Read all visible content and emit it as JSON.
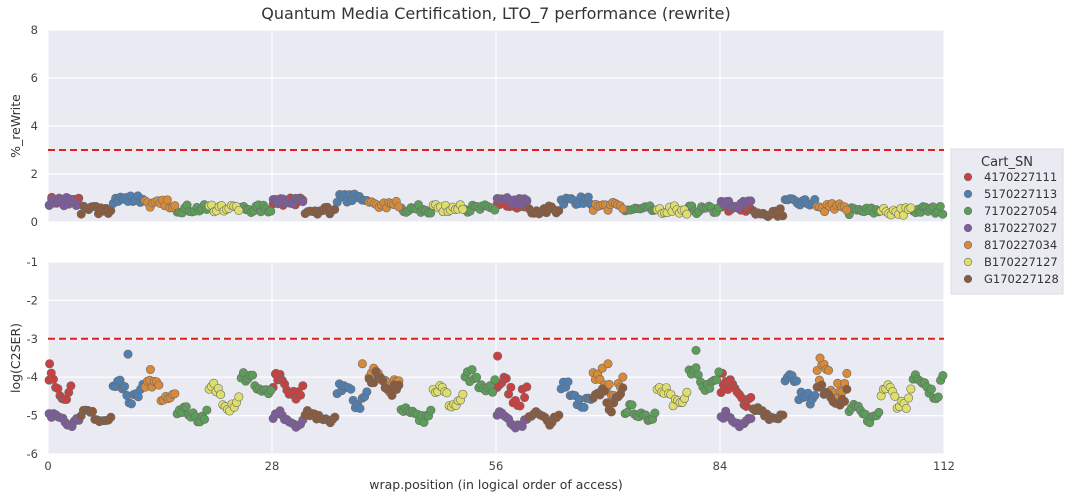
{
  "chart_data": {
    "type": "scatter",
    "title": "Quantum Media Certification, LTO_7 performance (rewrite)",
    "xlabel": "wrap.position (in logical order of access)",
    "xlim": [
      0,
      112
    ],
    "xticks": [
      0,
      28,
      56,
      84,
      112
    ],
    "grid": true,
    "legend": {
      "title": "Cart_SN",
      "placement": "right",
      "entries": [
        "4170227111",
        "5170227113",
        "7170227054",
        "8170227027",
        "8170227034",
        "B170227127",
        "G170227128"
      ]
    },
    "panels": [
      {
        "name": "top",
        "ylabel": "%_reWrite",
        "ylim": [
          0,
          8
        ],
        "yticks": [
          0,
          2,
          4,
          6,
          8
        ],
        "threshold": 3
      },
      {
        "name": "bottom",
        "ylabel": "log(C2SER)",
        "ylim": [
          -6,
          -1
        ],
        "yticks": [
          -6,
          -5,
          -4,
          -3,
          -2,
          -1
        ],
        "threshold": -3
      }
    ],
    "series": [
      {
        "name": "4170227111",
        "color": "#c8403f",
        "top_segments": [
          [
            0,
            4,
            0.88
          ],
          [
            28,
            32,
            0.85
          ],
          [
            56,
            60,
            0.7
          ],
          [
            84,
            88,
            0.6
          ]
        ],
        "bottom_segments": [
          [
            0,
            3,
            -4.3,
            0.45
          ],
          [
            28,
            32,
            -4.3,
            0.45
          ],
          [
            56,
            60,
            -4.35,
            0.45
          ],
          [
            84,
            88,
            -4.4,
            0.45
          ]
        ],
        "outliers": [
          [
            0.2,
            -3.65
          ],
          [
            28.5,
            -3.9
          ],
          [
            56.2,
            -3.45
          ],
          [
            84.3,
            -3.9
          ]
        ]
      },
      {
        "name": "5170227113",
        "color": "#4f7fb0",
        "top_segments": [
          [
            8,
            12,
            0.95
          ],
          [
            36,
            40,
            1.0
          ],
          [
            64,
            68,
            0.9
          ],
          [
            92,
            96,
            0.8
          ]
        ],
        "bottom_segments": [
          [
            8,
            12,
            -4.4,
            0.45
          ],
          [
            36,
            40,
            -4.45,
            0.45
          ],
          [
            64,
            68,
            -4.45,
            0.45
          ],
          [
            92,
            96,
            -4.35,
            0.45
          ]
        ],
        "outliers": [
          [
            10,
            -3.4
          ]
        ]
      },
      {
        "name": "7170227054",
        "color": "#5a9e57",
        "top_segments": [
          [
            16,
            20,
            0.55
          ],
          [
            24,
            28,
            0.55
          ],
          [
            44,
            48,
            0.55
          ],
          [
            52,
            56,
            0.55
          ],
          [
            72,
            76,
            0.5
          ],
          [
            80,
            84,
            0.5
          ],
          [
            100,
            104,
            0.45
          ],
          [
            108,
            112,
            0.5
          ]
        ],
        "bottom_segments": [
          [
            16,
            20,
            -4.95,
            0.25
          ],
          [
            24,
            28,
            -4.2,
            0.45
          ],
          [
            44,
            48,
            -4.95,
            0.25
          ],
          [
            52,
            56,
            -4.2,
            0.45
          ],
          [
            72,
            76,
            -4.95,
            0.25
          ],
          [
            80,
            84,
            -4.0,
            0.5
          ],
          [
            100,
            104,
            -4.95,
            0.25
          ],
          [
            108,
            112,
            -4.15,
            0.45
          ]
        ],
        "outliers": [
          [
            81,
            -3.3
          ]
        ]
      },
      {
        "name": "8170227027",
        "color": "#7d5b9c",
        "top_segments": [
          [
            0,
            4,
            0.85
          ],
          [
            28,
            32,
            0.85
          ],
          [
            56,
            60,
            0.85
          ],
          [
            84,
            88,
            0.75
          ]
        ],
        "bottom_segments": [
          [
            0,
            4,
            -5.1,
            0.25
          ],
          [
            28,
            32,
            -5.1,
            0.25
          ],
          [
            56,
            60,
            -5.1,
            0.25
          ],
          [
            84,
            88,
            -5.1,
            0.25
          ]
        ],
        "outliers": []
      },
      {
        "name": "8170227034",
        "color": "#d98a38",
        "top_segments": [
          [
            12,
            16,
            0.75
          ],
          [
            40,
            44,
            0.7
          ],
          [
            68,
            72,
            0.65
          ],
          [
            96,
            100,
            0.6
          ]
        ],
        "bottom_segments": [
          [
            12,
            16,
            -4.3,
            0.45
          ],
          [
            40,
            44,
            -4.1,
            0.5
          ],
          [
            68,
            72,
            -4.1,
            0.5
          ],
          [
            96,
            100,
            -4.1,
            0.5
          ]
        ],
        "outliers": [
          [
            12.8,
            -3.8
          ],
          [
            39.3,
            -3.65
          ],
          [
            70,
            -3.65
          ],
          [
            96.5,
            -3.5
          ]
        ]
      },
      {
        "name": "B170227127",
        "color": "#dede6a",
        "top_segments": [
          [
            20,
            24,
            0.6
          ],
          [
            48,
            52,
            0.55
          ],
          [
            76,
            80,
            0.5
          ],
          [
            104,
            108,
            0.45
          ]
        ],
        "bottom_segments": [
          [
            20,
            24,
            -4.5,
            0.4
          ],
          [
            48,
            52,
            -4.5,
            0.4
          ],
          [
            76,
            80,
            -4.55,
            0.35
          ],
          [
            104,
            108,
            -4.5,
            0.4
          ]
        ],
        "outliers": []
      },
      {
        "name": "G170227128",
        "color": "#8b5a3c",
        "top_segments": [
          [
            4,
            8,
            0.5
          ],
          [
            32,
            36,
            0.5
          ],
          [
            60,
            64,
            0.5
          ],
          [
            88,
            92,
            0.4
          ]
        ],
        "bottom_segments": [
          [
            4,
            8,
            -5.0,
            0.2
          ],
          [
            32,
            36,
            -5.05,
            0.2
          ],
          [
            60,
            64,
            -5.05,
            0.2
          ],
          [
            88,
            92,
            -4.95,
            0.2
          ],
          [
            40,
            44,
            -4.2,
            0.45
          ],
          [
            68,
            72,
            -4.5,
            0.45
          ],
          [
            96,
            100,
            -4.5,
            0.45
          ]
        ],
        "outliers": []
      }
    ]
  }
}
